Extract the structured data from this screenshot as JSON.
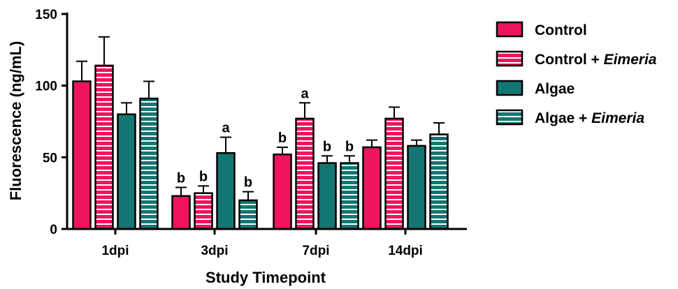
{
  "chart_data": {
    "type": "bar",
    "title": "",
    "xlabel": "Study Timepoint",
    "ylabel": "Fluorescence (ng/mL)",
    "ylim": [
      0,
      150
    ],
    "yticks": [
      0,
      50,
      100,
      150
    ],
    "categories": [
      "1dpi",
      "3dpi",
      "7dpi",
      "14dpi"
    ],
    "series": [
      {
        "name": "Control",
        "color": "#F0145C",
        "pattern": "solid",
        "values": [
          103,
          23,
          52,
          57
        ],
        "errors": [
          14,
          6,
          5,
          5
        ],
        "labels": [
          "",
          "b",
          "b",
          ""
        ]
      },
      {
        "name": "Control + Eimeria",
        "name_prefix": "Control + ",
        "name_italic": "Eimeria",
        "color": "#F0145C",
        "pattern": "horizontal-stripes",
        "values": [
          114,
          25,
          77,
          77
        ],
        "errors": [
          20,
          5,
          11,
          8
        ],
        "labels": [
          "",
          "b",
          "a",
          ""
        ]
      },
      {
        "name": "Algae",
        "color": "#137672",
        "pattern": "solid",
        "values": [
          80,
          53,
          46,
          58
        ],
        "errors": [
          8,
          11,
          5,
          4
        ],
        "labels": [
          "",
          "a",
          "b",
          ""
        ]
      },
      {
        "name": "Algae + Eimeria",
        "name_prefix": "Algae + ",
        "name_italic": "Eimeria",
        "color": "#137672",
        "pattern": "horizontal-stripes",
        "values": [
          91,
          20,
          46,
          66
        ],
        "errors": [
          12,
          6,
          5,
          8
        ],
        "labels": [
          "",
          "b",
          "b",
          ""
        ]
      }
    ],
    "legend_position": "right",
    "grid": false
  }
}
